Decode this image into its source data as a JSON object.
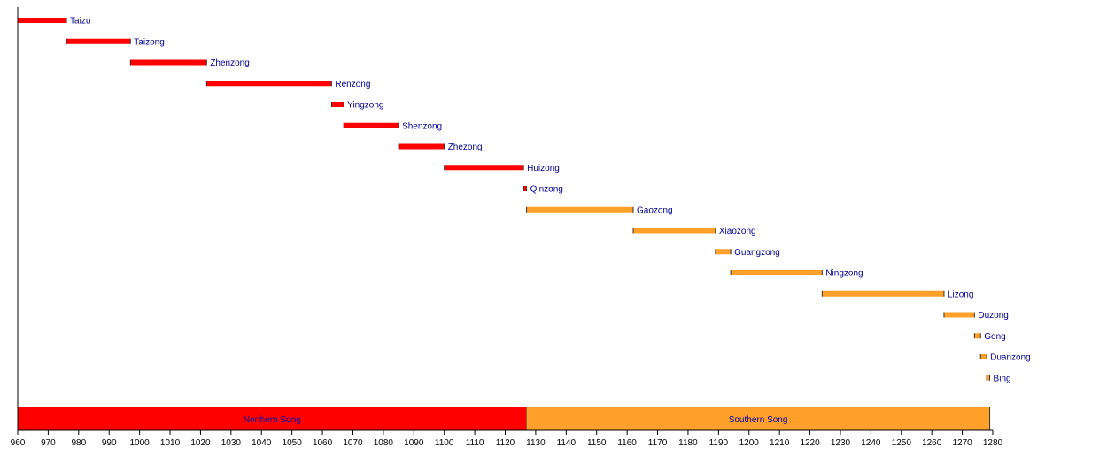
{
  "chart_data": {
    "type": "bar",
    "orientation": "horizontal-timeline",
    "title": "",
    "xlabel": "",
    "ylabel": "",
    "xlim": [
      960,
      1280
    ],
    "x_ticks": [
      960,
      970,
      980,
      990,
      1000,
      1010,
      1020,
      1030,
      1040,
      1050,
      1060,
      1070,
      1080,
      1090,
      1100,
      1110,
      1120,
      1130,
      1140,
      1150,
      1160,
      1170,
      1180,
      1190,
      1200,
      1210,
      1220,
      1230,
      1240,
      1250,
      1260,
      1270,
      1280
    ],
    "grid": false,
    "legend": "none",
    "colors": {
      "northern": "#ff0000",
      "southern": "#ffa02a",
      "label": "#00008b",
      "axis": "#000000"
    },
    "reigns": [
      {
        "name": "Taizu",
        "start": 960,
        "end": 976,
        "era": "northern"
      },
      {
        "name": "Taizong",
        "start": 976,
        "end": 997,
        "era": "northern"
      },
      {
        "name": "Zhenzong",
        "start": 997,
        "end": 1022,
        "era": "northern"
      },
      {
        "name": "Renzong",
        "start": 1022,
        "end": 1063,
        "era": "northern"
      },
      {
        "name": "Yingzong",
        "start": 1063,
        "end": 1067,
        "era": "northern"
      },
      {
        "name": "Shenzong",
        "start": 1067,
        "end": 1085,
        "era": "northern"
      },
      {
        "name": "Zhezong",
        "start": 1085,
        "end": 1100,
        "era": "northern"
      },
      {
        "name": "Huizong",
        "start": 1100,
        "end": 1126,
        "era": "northern"
      },
      {
        "name": "Qinzong",
        "start": 1126,
        "end": 1127,
        "era": "northern"
      },
      {
        "name": "Gaozong",
        "start": 1127,
        "end": 1162,
        "era": "southern"
      },
      {
        "name": "Xiaozong",
        "start": 1162,
        "end": 1189,
        "era": "southern"
      },
      {
        "name": "Guangzong",
        "start": 1189,
        "end": 1194,
        "era": "southern"
      },
      {
        "name": "Ningzong",
        "start": 1194,
        "end": 1224,
        "era": "southern"
      },
      {
        "name": "Lizong",
        "start": 1224,
        "end": 1264,
        "era": "southern"
      },
      {
        "name": "Duzong",
        "start": 1264,
        "end": 1274,
        "era": "southern"
      },
      {
        "name": "Gong",
        "start": 1274,
        "end": 1276,
        "era": "southern"
      },
      {
        "name": "Duanzong",
        "start": 1276,
        "end": 1278,
        "era": "southern"
      },
      {
        "name": "Bing",
        "start": 1278,
        "end": 1279,
        "era": "southern"
      }
    ],
    "eras": [
      {
        "name": "Northern Song",
        "start": 960,
        "end": 1127,
        "era": "northern"
      },
      {
        "name": "Southern Song",
        "start": 1127,
        "end": 1279,
        "era": "southern"
      }
    ]
  }
}
